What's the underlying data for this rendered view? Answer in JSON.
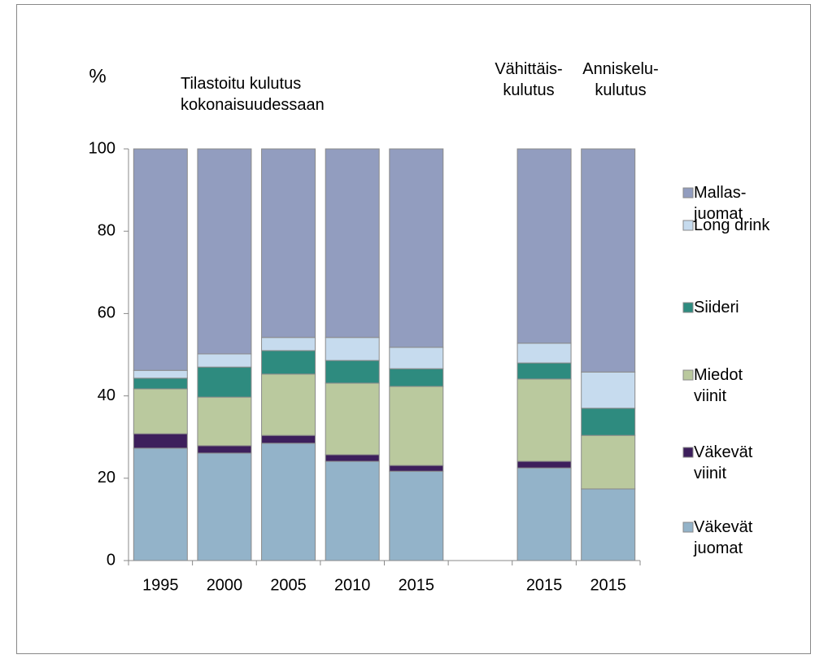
{
  "chart_data": {
    "type": "bar",
    "stacked": true,
    "ylabel": "%",
    "annotations": [
      "Tilastoitu kulutus\nkokonaisuudessaan",
      "Vähittäis-\nkulutus",
      "Anniskelu-\nkulutus"
    ],
    "categories": [
      "1995",
      "2000",
      "2005",
      "2010",
      "2015",
      null,
      "2015",
      "2015"
    ],
    "series": [
      {
        "name": "Väkevät\njuomat",
        "color": "#93b3c9",
        "values": [
          27.3,
          26.1,
          28.5,
          24.1,
          21.7,
          null,
          22.5,
          17.4
        ]
      },
      {
        "name": "Väkevät\nviinit",
        "color": "#3d1f5c",
        "values": [
          3.5,
          1.8,
          1.9,
          1.6,
          1.4,
          null,
          1.6,
          0
        ]
      },
      {
        "name": "Miedot\nviinit",
        "color": "#bac99e",
        "values": [
          10.9,
          11.8,
          14.9,
          17.4,
          19.2,
          null,
          20.0,
          13.0
        ]
      },
      {
        "name": "Siideri",
        "color": "#2e8b7f",
        "values": [
          2.6,
          7.3,
          5.7,
          5.5,
          4.3,
          null,
          3.9,
          6.6
        ]
      },
      {
        "name": "Long drink",
        "color": "#c6dbee",
        "values": [
          1.9,
          3.2,
          3.2,
          5.6,
          5.2,
          null,
          4.8,
          8.8
        ]
      },
      {
        "name": "Mallas-\njuomat",
        "color": "#929dbf",
        "values": [
          53.8,
          49.8,
          45.8,
          45.8,
          48.2,
          null,
          47.2,
          54.2
        ]
      }
    ],
    "ylim": [
      0,
      100
    ],
    "yticks": [
      0,
      20,
      40,
      60,
      80,
      100
    ],
    "legend": "right"
  }
}
